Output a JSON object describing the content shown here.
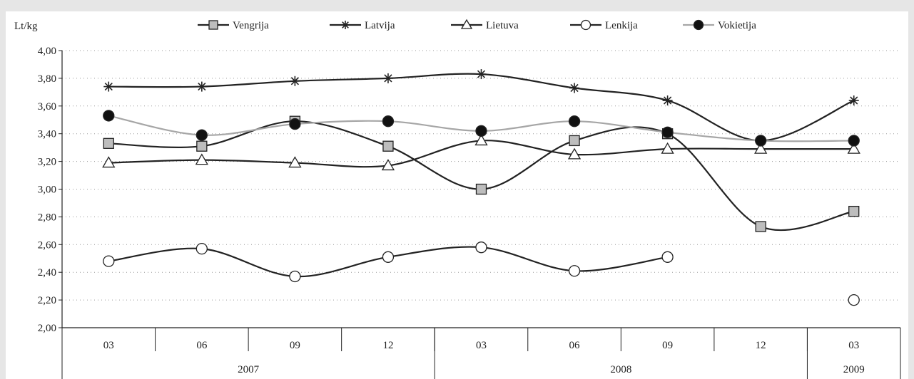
{
  "chart_data": {
    "type": "line",
    "title": "",
    "ylabel": "Lt/kg",
    "xlabel": "",
    "ylim": [
      2.0,
      4.0
    ],
    "yticks": [
      "2,00",
      "2,20",
      "2,40",
      "2,60",
      "2,80",
      "3,00",
      "3,20",
      "3,40",
      "3,60",
      "3,80",
      "4,00"
    ],
    "categories": [
      "03",
      "06",
      "09",
      "12",
      "03",
      "06",
      "09",
      "12",
      "03"
    ],
    "year_groups": [
      {
        "label": "2007",
        "span": 4
      },
      {
        "label": "2008",
        "span": 4
      },
      {
        "label": "2009",
        "span": 1
      }
    ],
    "grid": "horizontal dotted",
    "legend_position": "top",
    "series": [
      {
        "name": "Vengrija",
        "color": "#222222",
        "marker": "square",
        "marker_fill": "#bdbdbd",
        "values": [
          3.33,
          3.31,
          3.49,
          3.31,
          3.0,
          3.35,
          3.4,
          2.73,
          2.84
        ]
      },
      {
        "name": "Latvija",
        "color": "#222222",
        "marker": "star",
        "marker_fill": "#222222",
        "values": [
          3.74,
          3.74,
          3.78,
          3.8,
          3.83,
          3.73,
          3.64,
          3.35,
          3.64
        ]
      },
      {
        "name": "Lietuva",
        "color": "#222222",
        "marker": "triangle",
        "marker_fill": "#ffffff",
        "values": [
          3.19,
          3.21,
          3.19,
          3.17,
          3.35,
          3.25,
          3.29,
          3.29,
          3.29
        ]
      },
      {
        "name": "Lenkija",
        "color": "#222222",
        "marker": "circle",
        "marker_fill": "#ffffff",
        "values": [
          2.48,
          2.57,
          2.37,
          2.51,
          2.58,
          2.41,
          2.51,
          null,
          2.2
        ]
      },
      {
        "name": "Vokietija",
        "color": "#a6a6a6",
        "marker": "circle",
        "marker_fill": "#111111",
        "values": [
          3.53,
          3.39,
          3.47,
          3.49,
          3.42,
          3.49,
          3.41,
          3.35,
          3.35
        ]
      }
    ]
  }
}
